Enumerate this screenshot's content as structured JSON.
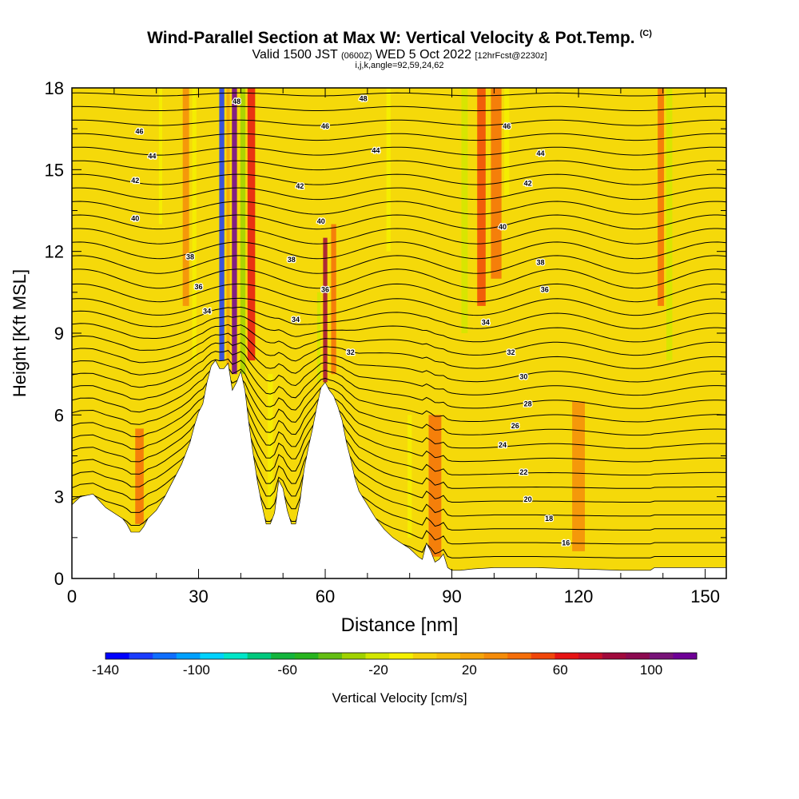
{
  "header": {
    "title": "Wind-Parallel Section at Max W: Vertical Velocity & Pot.Temp.",
    "copyright": "(C)",
    "valid_prefix": "Valid 1500 JST",
    "valid_utc": "(0600Z)",
    "valid_date": "WED 5 Oct 2022",
    "forecast": "[12hrFcst@2230z]",
    "indices": "i,j,k,angle=92,59,24,62"
  },
  "colors": {
    "background_field": "#f5d90a",
    "terrain": "#ffffff",
    "contour": "#000000",
    "colorbar": [
      "#0000ff",
      "#1a3cff",
      "#0f6eff",
      "#00a0ff",
      "#00d2ff",
      "#00e6c8",
      "#00c87d",
      "#14b43c",
      "#28b41e",
      "#64be14",
      "#a0d200",
      "#d2e600",
      "#f5f000",
      "#f5d20a",
      "#f5be0a",
      "#f5a50a",
      "#f58c0a",
      "#f56e0a",
      "#f0460a",
      "#e61414",
      "#c80f28",
      "#a00a3c",
      "#8c0a50",
      "#781478",
      "#6e0096"
    ]
  },
  "chart_data": {
    "type": "heatmap",
    "xlabel": "Distance [nm]",
    "ylabel": "Height [Kft MSL]",
    "xlim": [
      0,
      155
    ],
    "ylim": [
      0,
      18
    ],
    "xticks": [
      0,
      30,
      60,
      90,
      120,
      150
    ],
    "yticks": [
      0,
      3,
      6,
      9,
      12,
      15,
      18
    ],
    "colorbar": {
      "label": "Vertical Velocity [cm/s]",
      "range": [
        -140,
        120
      ],
      "step": 10,
      "tick_values": [
        -140,
        -100,
        -60,
        -20,
        20,
        60,
        100
      ]
    },
    "terrain_profile": {
      "x": [
        0,
        2,
        5,
        8,
        10,
        12,
        13,
        14,
        15,
        16,
        17,
        18,
        20,
        22,
        24,
        26,
        28,
        29,
        30,
        31,
        32,
        33,
        34,
        35,
        36,
        37,
        38,
        39,
        40,
        41,
        42,
        43,
        44,
        45,
        46,
        47,
        48,
        49,
        50,
        51,
        52,
        53,
        54,
        55,
        56,
        57,
        58,
        59,
        60,
        61,
        62,
        63,
        64,
        65,
        66,
        67,
        68,
        70,
        72,
        74,
        76,
        78,
        80,
        82,
        83,
        84,
        85,
        86,
        87,
        88,
        89,
        90,
        92,
        95,
        100,
        110,
        120,
        130,
        137,
        138,
        145,
        155
      ],
      "y": [
        2.7,
        3.0,
        3.1,
        2.6,
        2.4,
        2.2,
        2.0,
        1.7,
        1.7,
        1.7,
        1.9,
        2.2,
        2.5,
        3.0,
        3.6,
        4.2,
        5.0,
        5.6,
        6.1,
        6.4,
        7.2,
        7.8,
        8.0,
        7.7,
        7.7,
        7.9,
        6.9,
        7.2,
        7.6,
        6.9,
        5.6,
        4.5,
        3.5,
        2.7,
        2.0,
        2.0,
        2.4,
        3.6,
        3.3,
        2.5,
        2.0,
        2.0,
        2.8,
        4.0,
        4.8,
        5.5,
        6.3,
        7.0,
        7.2,
        6.9,
        6.7,
        6.3,
        5.8,
        5.0,
        4.4,
        3.7,
        3.2,
        2.7,
        2.2,
        1.8,
        1.5,
        1.3,
        1.1,
        0.8,
        0.7,
        1.3,
        1.0,
        0.6,
        0.7,
        0.9,
        0.4,
        0.3,
        0.3,
        0.35,
        0.4,
        0.4,
        0.35,
        0.3,
        0.3,
        0.4,
        0.4,
        0.4
      ]
    },
    "velocity_bands": [
      {
        "x": 35.5,
        "y_min": 8.0,
        "y_max": 18,
        "w": -130,
        "width": 1.2
      },
      {
        "x": 37.0,
        "y_min": 7.8,
        "y_max": 18,
        "w": 10,
        "width": 0.8
      },
      {
        "x": 38.5,
        "y_min": 7.5,
        "y_max": 18,
        "w": 110,
        "width": 1.2
      },
      {
        "x": 40.5,
        "y_min": 7.5,
        "y_max": 18,
        "w": -40,
        "width": 1.2
      },
      {
        "x": 42.5,
        "y_min": 8.0,
        "y_max": 18,
        "w": 50,
        "width": 1.8
      },
      {
        "x": 29.0,
        "y_min": 8.0,
        "y_max": 18,
        "w": -20,
        "width": 1.0
      },
      {
        "x": 27.0,
        "y_min": 10.0,
        "y_max": 18,
        "w": 20,
        "width": 1.5
      },
      {
        "x": 21.0,
        "y_min": 13.0,
        "y_max": 18,
        "w": -20,
        "width": 0.8
      },
      {
        "x": 60.0,
        "y_min": 7.2,
        "y_max": 12.5,
        "w": 70,
        "width": 1.0
      },
      {
        "x": 58.5,
        "y_min": 7.2,
        "y_max": 10.5,
        "w": -30,
        "width": 0.8
      },
      {
        "x": 62.0,
        "y_min": 7.5,
        "y_max": 13.0,
        "w": 30,
        "width": 1.2
      },
      {
        "x": 47.0,
        "y_min": 2.5,
        "y_max": 7.5,
        "w": -20,
        "width": 1.2
      },
      {
        "x": 93.0,
        "y_min": 9.0,
        "y_max": 18,
        "w": -30,
        "width": 1.5
      },
      {
        "x": 97.0,
        "y_min": 10.0,
        "y_max": 18,
        "w": 40,
        "width": 2.0
      },
      {
        "x": 100.5,
        "y_min": 11.0,
        "y_max": 18,
        "w": 35,
        "width": 2.5
      },
      {
        "x": 103.0,
        "y_min": 14.0,
        "y_max": 18,
        "w": -20,
        "width": 1.2
      },
      {
        "x": 141.5,
        "y_min": 8.0,
        "y_max": 18,
        "w": -30,
        "width": 1.4
      },
      {
        "x": 139.5,
        "y_min": 10.0,
        "y_max": 18,
        "w": 30,
        "width": 1.5
      },
      {
        "x": 86.0,
        "y_min": 0.8,
        "y_max": 6.0,
        "w": 30,
        "width": 3.0
      },
      {
        "x": 80.0,
        "y_min": 1.5,
        "y_max": 6.0,
        "w": -20,
        "width": 1.0
      },
      {
        "x": 16.0,
        "y_min": 2.0,
        "y_max": 5.5,
        "w": 30,
        "width": 2.0
      },
      {
        "x": 75.0,
        "y_min": 12.0,
        "y_max": 18,
        "w": -20,
        "width": 1.0
      },
      {
        "x": 120.0,
        "y_min": 1.0,
        "y_max": 6.5,
        "w": 25,
        "width": 3.0
      }
    ],
    "isentrope_labels": [
      {
        "text": "16",
        "x": 117,
        "y": 1.3
      },
      {
        "text": "18",
        "x": 113,
        "y": 2.2
      },
      {
        "text": "20",
        "x": 108,
        "y": 2.9
      },
      {
        "text": "22",
        "x": 107,
        "y": 3.9
      },
      {
        "text": "24",
        "x": 102,
        "y": 4.9
      },
      {
        "text": "26",
        "x": 105,
        "y": 5.6
      },
      {
        "text": "28",
        "x": 108,
        "y": 6.4
      },
      {
        "text": "30",
        "x": 107,
        "y": 7.4
      },
      {
        "text": "32",
        "x": 104,
        "y": 8.3
      },
      {
        "text": "32",
        "x": 66,
        "y": 8.3
      },
      {
        "text": "34",
        "x": 98,
        "y": 9.4
      },
      {
        "text": "34",
        "x": 53,
        "y": 9.5
      },
      {
        "text": "34",
        "x": 32,
        "y": 9.8
      },
      {
        "text": "36",
        "x": 112,
        "y": 10.6
      },
      {
        "text": "36",
        "x": 60,
        "y": 10.6
      },
      {
        "text": "36",
        "x": 30,
        "y": 10.7
      },
      {
        "text": "38",
        "x": 111,
        "y": 11.6
      },
      {
        "text": "38",
        "x": 52,
        "y": 11.7
      },
      {
        "text": "38",
        "x": 28,
        "y": 11.8
      },
      {
        "text": "40",
        "x": 102,
        "y": 12.9
      },
      {
        "text": "40",
        "x": 59,
        "y": 13.1
      },
      {
        "text": "40",
        "x": 15,
        "y": 13.2
      },
      {
        "text": "42",
        "x": 108,
        "y": 14.5
      },
      {
        "text": "42",
        "x": 54,
        "y": 14.4
      },
      {
        "text": "42",
        "x": 15,
        "y": 14.6
      },
      {
        "text": "44",
        "x": 111,
        "y": 15.6
      },
      {
        "text": "44",
        "x": 72,
        "y": 15.7
      },
      {
        "text": "44",
        "x": 19,
        "y": 15.5
      },
      {
        "text": "46",
        "x": 103,
        "y": 16.6
      },
      {
        "text": "46",
        "x": 60,
        "y": 16.6
      },
      {
        "text": "46",
        "x": 16,
        "y": 16.4
      },
      {
        "text": "48",
        "x": 69,
        "y": 17.6
      },
      {
        "text": "48",
        "x": 39,
        "y": 17.5
      }
    ]
  }
}
